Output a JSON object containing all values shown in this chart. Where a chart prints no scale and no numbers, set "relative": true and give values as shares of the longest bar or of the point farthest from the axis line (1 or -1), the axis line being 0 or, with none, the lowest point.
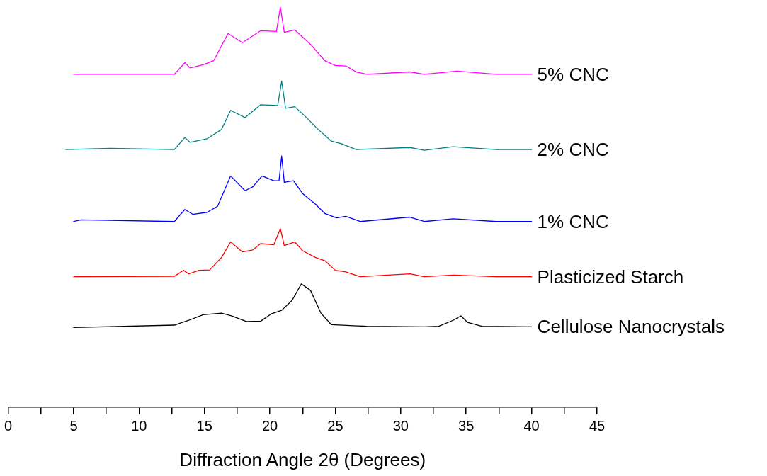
{
  "chart_data": {
    "type": "line",
    "relative": true,
    "xlabel": "Diffraction Angle 2θ (Degrees)",
    "xlim": [
      0,
      45
    ],
    "xticks": [
      0,
      {
        "value": 2.5,
        "label": null
      },
      5,
      {
        "value": 7.5,
        "label": null
      },
      10,
      {
        "value": 12.5,
        "label": null
      },
      15,
      {
        "value": 17.5,
        "label": null
      },
      20,
      {
        "value": 22.5,
        "label": null
      },
      25,
      {
        "value": 27.5,
        "label": null
      },
      30,
      {
        "value": 32.5,
        "label": null
      },
      35,
      {
        "value": 37.5,
        "label": null
      },
      40,
      {
        "value": 42.5,
        "label": null
      },
      45
    ],
    "grid": false,
    "legend": false,
    "marker": "none",
    "line_style": "solid",
    "series": [
      {
        "name": "Cellulose Nanocrystals",
        "color": "#000000",
        "x": [
          5.0,
          12.7,
          13.8,
          14.9,
          16.3,
          17.1,
          18.2,
          19.3,
          20.1,
          20.9,
          21.7,
          22.4,
          23.1,
          23.9,
          24.7,
          27.4,
          31.8,
          32.9,
          34.0,
          34.6,
          35.1,
          36.2,
          40.0
        ],
        "values": [
          0.199,
          0.205,
          0.217,
          0.231,
          0.235,
          0.228,
          0.214,
          0.215,
          0.233,
          0.242,
          0.267,
          0.308,
          0.292,
          0.235,
          0.206,
          0.202,
          0.201,
          0.202,
          0.217,
          0.228,
          0.212,
          0.202,
          0.201
        ]
      },
      {
        "name": "Plasticized Starch",
        "color": "#ff0000",
        "x": [
          5.0,
          12.7,
          13.4,
          13.8,
          14.6,
          15.4,
          16.3,
          17.0,
          17.9,
          18.7,
          19.3,
          20.3,
          20.8,
          21.1,
          21.9,
          22.5,
          23.5,
          24.2,
          25.0,
          25.8,
          26.9,
          30.7,
          31.8,
          34.0,
          37.3,
          40.0
        ],
        "values": [
          0.326,
          0.327,
          0.342,
          0.333,
          0.342,
          0.343,
          0.374,
          0.413,
          0.388,
          0.393,
          0.409,
          0.406,
          0.446,
          0.404,
          0.413,
          0.391,
          0.374,
          0.366,
          0.342,
          0.338,
          0.326,
          0.333,
          0.326,
          0.33,
          0.326,
          0.326
        ]
      },
      {
        "name": "1% CNC",
        "color": "#0000ff",
        "x": [
          5.0,
          5.6,
          12.7,
          13.5,
          14.1,
          15.2,
          16.0,
          17.0,
          18.1,
          18.7,
          19.4,
          20.3,
          20.7,
          20.9,
          21.1,
          21.8,
          22.5,
          23.5,
          24.2,
          25.1,
          25.8,
          26.9,
          30.7,
          31.8,
          34.0,
          37.3,
          40.0
        ],
        "values": [
          0.464,
          0.468,
          0.464,
          0.494,
          0.482,
          0.487,
          0.502,
          0.578,
          0.541,
          0.551,
          0.578,
          0.566,
          0.566,
          0.628,
          0.562,
          0.566,
          0.534,
          0.507,
          0.484,
          0.473,
          0.477,
          0.464,
          0.475,
          0.464,
          0.471,
          0.464,
          0.464
        ]
      },
      {
        "name": "2% CNC",
        "color": "#008080",
        "x": [
          4.4,
          7.8,
          12.7,
          13.5,
          13.9,
          15.2,
          16.3,
          17.0,
          18.1,
          19.3,
          20.6,
          20.9,
          21.2,
          21.9,
          22.8,
          23.6,
          24.7,
          25.5,
          26.6,
          30.7,
          31.8,
          34.0,
          37.3,
          40.0
        ],
        "values": [
          0.644,
          0.647,
          0.644,
          0.674,
          0.662,
          0.671,
          0.694,
          0.742,
          0.724,
          0.756,
          0.754,
          0.815,
          0.747,
          0.751,
          0.724,
          0.697,
          0.665,
          0.658,
          0.644,
          0.649,
          0.642,
          0.651,
          0.644,
          0.644
        ]
      },
      {
        "name": "5% CNC",
        "color": "#ff00ff",
        "x": [
          5.0,
          12.7,
          13.5,
          13.9,
          14.9,
          15.7,
          16.8,
          17.9,
          19.3,
          20.5,
          20.8,
          21.1,
          21.9,
          23.1,
          24.2,
          25.0,
          25.8,
          26.6,
          27.4,
          30.7,
          31.8,
          34.3,
          37.3,
          40.0
        ],
        "values": [
          0.832,
          0.832,
          0.861,
          0.848,
          0.856,
          0.866,
          0.934,
          0.911,
          0.941,
          0.939,
          1,
          0.937,
          0.943,
          0.907,
          0.866,
          0.854,
          0.853,
          0.838,
          0.832,
          0.838,
          0.832,
          0.84,
          0.832,
          0.832
        ]
      }
    ]
  }
}
